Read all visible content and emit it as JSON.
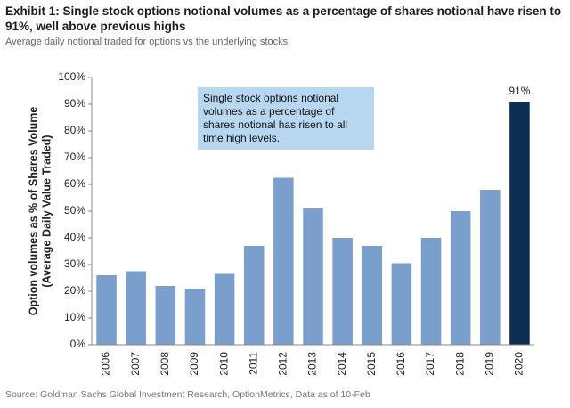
{
  "chart_data": {
    "type": "bar",
    "title": "Exhibit 1: Single stock options notional volumes as a percentage of shares notional have risen to 91%, well above previous highs",
    "subtitle": "Average daily notional traded for options vs the underlying stocks",
    "ylabel": [
      "Option volumes as % of  Shares Volume",
      "(Average Daily Value Traded)"
    ],
    "annotation": "Single stock options notional volumes as a percentage of shares notional has risen to all time high levels.",
    "source": "Source: Goldman Sachs Global Investment Research, OptionMetrics, Data as of 10-Feb",
    "categories": [
      "2006",
      "2007",
      "2008",
      "2009",
      "2010",
      "2011",
      "2012",
      "2013",
      "2014",
      "2015",
      "2016",
      "2017",
      "2018",
      "2019",
      "2020"
    ],
    "values": [
      26,
      27.5,
      22,
      21,
      26.5,
      37,
      62.5,
      51,
      40,
      37,
      30.5,
      40,
      50,
      58,
      91
    ],
    "value_labels": [
      null,
      null,
      null,
      null,
      null,
      null,
      null,
      null,
      null,
      null,
      null,
      null,
      null,
      null,
      "91%"
    ],
    "colors": [
      "#7b9fcc",
      "#7b9fcc",
      "#7b9fcc",
      "#7b9fcc",
      "#7b9fcc",
      "#7b9fcc",
      "#7b9fcc",
      "#7b9fcc",
      "#7b9fcc",
      "#7b9fcc",
      "#7b9fcc",
      "#7b9fcc",
      "#7b9fcc",
      "#7b9fcc",
      "#0e2d52"
    ],
    "ylim": [
      0,
      100
    ],
    "yticks": [
      {
        "value": 0,
        "label": "0%"
      },
      {
        "value": 10,
        "label": "10%"
      },
      {
        "value": 20,
        "label": "20%"
      },
      {
        "value": 30,
        "label": "30%"
      },
      {
        "value": 40,
        "label": "40%"
      },
      {
        "value": 50,
        "label": "50%"
      },
      {
        "value": 60,
        "label": "60%"
      },
      {
        "value": 70,
        "label": "70%"
      },
      {
        "value": 80,
        "label": "80%"
      },
      {
        "value": 90,
        "label": "90%"
      },
      {
        "value": 100,
        "label": "100%"
      }
    ],
    "grid": false
  }
}
